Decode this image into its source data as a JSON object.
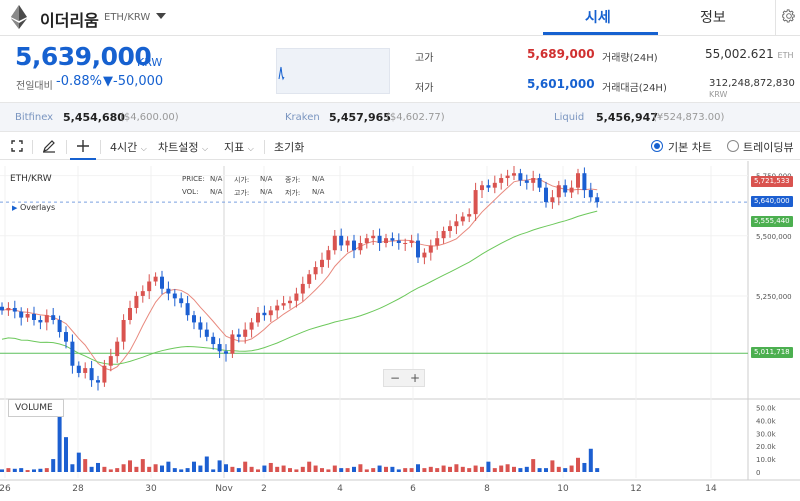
{
  "header": {
    "coin_name": "이더리움",
    "pair": "ETH/KRW",
    "tabs": [
      {
        "label": "시세",
        "active": true
      },
      {
        "label": "정보",
        "active": false
      }
    ]
  },
  "summary": {
    "price": "5,639,000",
    "unit": "KRW",
    "change_label": "전일대비",
    "change_pct": "-0.88%",
    "change_amt": "▼-50,000",
    "high_label": "고가",
    "high": "5,689,000",
    "low_label": "저가",
    "low": "5,601,000",
    "volume_label": "거래량(24H)",
    "volume": "55,002.621",
    "volume_unit": "ETH",
    "amount_label": "거래대금(24H)",
    "amount": "312,248,872,830",
    "amount_unit": "KRW"
  },
  "exchanges": [
    {
      "name": "Bitfinex",
      "value": "5,454,680",
      "sub": "($4,600.00)"
    },
    {
      "name": "Kraken",
      "value": "5,457,965",
      "sub": "($4,602.77)"
    },
    {
      "name": "Liquid",
      "value": "5,456,947",
      "sub": "(¥524,873.00)"
    }
  ],
  "toolbar": {
    "interval": "4시간",
    "chart_settings": "차트설정",
    "indicators": "지표",
    "reset": "초기화",
    "basic_chart": "기본 차트",
    "tradingview": "트레이딩뷰"
  },
  "legend": {
    "pair": "ETH/KRW",
    "price_label": "PRICE:",
    "price": "N/A",
    "open_label": "시가:",
    "open": "N/A",
    "close_label": "종가:",
    "close": "N/A",
    "vol_label": "VOL:",
    "vol": "N/A",
    "high_label": "고가:",
    "high": "N/A",
    "low_label": "저가:",
    "low": "N/A",
    "overlays": "Overlays",
    "volume_tab": "VOLUME"
  },
  "colors": {
    "up": "#d9534f",
    "down": "#1c5fd1",
    "ma_short": "#e8897e",
    "ma_long": "#6cc85b",
    "accent": "#1661d0"
  },
  "chart_data": {
    "type": "candlestick",
    "x_ticks": [
      "26",
      "28",
      "30",
      "Nov",
      "2",
      "4",
      "6",
      "8",
      "10",
      "12",
      "14"
    ],
    "y_ticks": [
      "5,750,000",
      "5,500,000",
      "5,250,000"
    ],
    "price_tags": [
      {
        "label": "5,721,533",
        "value": 5721533,
        "color": "#d9534f"
      },
      {
        "label": "5,640,000",
        "value": 5640000,
        "color": "#1c5fd1"
      },
      {
        "label": "5,555,440",
        "value": 5555440,
        "color": "#4caf50"
      },
      {
        "label": "5,011,718",
        "value": 5011718,
        "color": "#4caf50"
      }
    ],
    "volume_ticks": [
      "50.0k",
      "40.0k",
      "30.0k",
      "20.0k",
      "10.0k",
      "0"
    ],
    "horizontal_line": 5011718,
    "ylim": [
      4830000,
      5790000
    ],
    "closes": [
      5190000,
      5200000,
      5185000,
      5160000,
      5175000,
      5150000,
      5140000,
      5170000,
      5150000,
      5100000,
      5060000,
      4960000,
      4930000,
      4950000,
      4900000,
      4890000,
      4960000,
      5000000,
      5060000,
      5150000,
      5200000,
      5250000,
      5270000,
      5310000,
      5330000,
      5280000,
      5260000,
      5240000,
      5220000,
      5170000,
      5140000,
      5110000,
      5080000,
      5050000,
      5020000,
      5010000,
      5090000,
      5080000,
      5110000,
      5140000,
      5180000,
      5170000,
      5190000,
      5210000,
      5220000,
      5230000,
      5260000,
      5300000,
      5340000,
      5370000,
      5400000,
      5440000,
      5500000,
      5460000,
      5480000,
      5440000,
      5470000,
      5490000,
      5500000,
      5470000,
      5490000,
      5480000,
      5470000,
      5470000,
      5480000,
      5410000,
      5430000,
      5460000,
      5490000,
      5520000,
      5540000,
      5560000,
      5580000,
      5590000,
      5690000,
      5710000,
      5700000,
      5720000,
      5740000,
      5750000,
      5760000,
      5730000,
      5720000,
      5740000,
      5700000,
      5640000,
      5660000,
      5710000,
      5680000,
      5700000,
      5760000,
      5690000,
      5660000,
      5640000
    ],
    "volumes": [
      2000,
      3000,
      2500,
      3000,
      1500,
      2000,
      2500,
      3000,
      10000,
      52000,
      27000,
      6000,
      15000,
      10000,
      4000,
      7000,
      4000,
      2000,
      3000,
      6000,
      9000,
      4000,
      10000,
      4000,
      6000,
      5000,
      8000,
      3000,
      2000,
      3000,
      8000,
      5000,
      12000,
      2000,
      9000,
      6000,
      4000,
      3000,
      8000,
      4000,
      2000,
      5000,
      7000,
      4000,
      5000,
      3000,
      2000,
      4000,
      8000,
      5000,
      3000,
      2000,
      5000,
      3000,
      3000,
      4000,
      6000,
      2000,
      3000,
      5000,
      4000,
      4000,
      2000,
      3000,
      3000,
      6000,
      3000,
      4000,
      3000,
      5000,
      4000,
      6000,
      4000,
      3000,
      5000,
      4000,
      8000,
      3000,
      5000,
      6000,
      4000,
      3000,
      4000,
      10000,
      3000,
      3000,
      9000,
      4000,
      3000,
      5000,
      11000,
      7000,
      18000,
      3000
    ]
  }
}
